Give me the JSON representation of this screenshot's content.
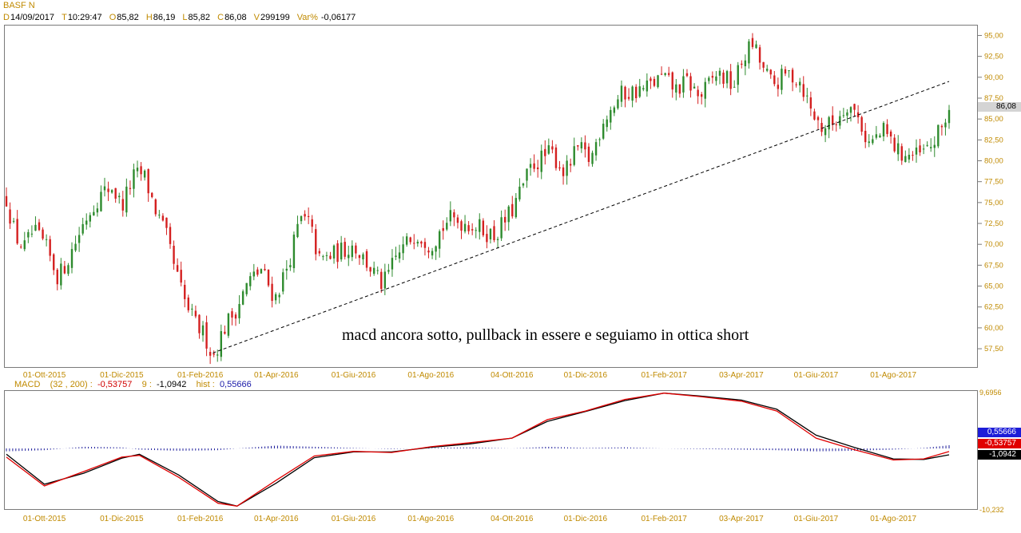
{
  "header": {
    "title": "BASF N",
    "quote": [
      {
        "k": "D",
        "v": "14/09/2017"
      },
      {
        "k": "T",
        "v": "10:29:47"
      },
      {
        "k": "O",
        "v": "85,82"
      },
      {
        "k": "H",
        "v": "86,19"
      },
      {
        "k": "L",
        "v": "85,82"
      },
      {
        "k": "C",
        "v": "86,08"
      },
      {
        "k": "V",
        "v": "299199"
      },
      {
        "k": "Var%",
        "v": "-0,06177"
      }
    ]
  },
  "annotation": "macd ancora sotto, pullback in essere e seguiamo in ottica short",
  "price_axis_labels": [
    "95,00",
    "92,50",
    "90,00",
    "87,50",
    "85,00",
    "82,50",
    "80,00",
    "77,50",
    "75,00",
    "72,50",
    "70,00",
    "67,50",
    "65,00",
    "62,50",
    "60,00",
    "57,50"
  ],
  "last_price_label": "86,08",
  "date_labels": [
    "01-Ott-2015",
    "01-Dic-2015",
    "01-Feb-2016",
    "01-Apr-2016",
    "01-Giu-2016",
    "01-Ago-2016",
    "04-Ott-2016",
    "01-Dic-2016",
    "01-Feb-2017",
    "03-Apr-2017",
    "01-Giu-2017",
    "01-Ago-2017"
  ],
  "macd_header": {
    "name": "MACD",
    "params": "(32 , 200)",
    "macd_value": "-0,53757",
    "signal_label": "9",
    "signal_value": "-1,0942",
    "hist_label": "hist",
    "hist_value": "0,55666"
  },
  "macd_axis": {
    "top": "9,6956",
    "bottom": "-10,232"
  },
  "macd_tags": {
    "hist": "0,55666",
    "macd": "-0,53757",
    "signal": "-1,0942"
  },
  "colors": {
    "up": "#2e8b2e",
    "down": "#d42020",
    "macd": "#e00000",
    "signal": "#000000",
    "hist": "#1a1a9a",
    "axis_text": "#c08a00"
  },
  "chart_data": [
    {
      "type": "candlestick",
      "title": "BASF N",
      "x_range": [
        "2015-09-01",
        "2017-09-14"
      ],
      "ylim": [
        55.5,
        96.0
      ],
      "price_path": [
        {
          "date": "2015-09-01",
          "close": 75.5
        },
        {
          "date": "2015-09-08",
          "close": 71.0
        },
        {
          "date": "2015-09-15",
          "close": 69.5
        },
        {
          "date": "2015-09-22",
          "close": 71.5
        },
        {
          "date": "2015-10-01",
          "close": 70.0
        },
        {
          "date": "2015-10-12",
          "close": 66.0
        },
        {
          "date": "2015-10-22",
          "close": 69.0
        },
        {
          "date": "2015-11-02",
          "close": 73.0
        },
        {
          "date": "2015-11-12",
          "close": 75.5
        },
        {
          "date": "2015-11-23",
          "close": 77.0
        },
        {
          "date": "2015-12-01",
          "close": 74.5
        },
        {
          "date": "2015-12-10",
          "close": 78.0
        },
        {
          "date": "2015-12-18",
          "close": 78.5
        },
        {
          "date": "2015-12-28",
          "close": 74.0
        },
        {
          "date": "2016-01-05",
          "close": 71.0
        },
        {
          "date": "2016-01-12",
          "close": 67.0
        },
        {
          "date": "2016-01-20",
          "close": 63.0
        },
        {
          "date": "2016-01-28",
          "close": 60.5
        },
        {
          "date": "2016-02-05",
          "close": 59.0
        },
        {
          "date": "2016-02-11",
          "close": 56.5
        },
        {
          "date": "2016-02-20",
          "close": 60.0
        },
        {
          "date": "2016-03-01",
          "close": 62.5
        },
        {
          "date": "2016-03-10",
          "close": 65.5
        },
        {
          "date": "2016-03-20",
          "close": 67.0
        },
        {
          "date": "2016-03-31",
          "close": 63.5
        },
        {
          "date": "2016-04-10",
          "close": 67.5
        },
        {
          "date": "2016-04-20",
          "close": 73.0
        },
        {
          "date": "2016-04-27",
          "close": 72.5
        },
        {
          "date": "2016-05-05",
          "close": 68.0
        },
        {
          "date": "2016-05-20",
          "close": 69.0
        },
        {
          "date": "2016-06-01",
          "close": 70.0
        },
        {
          "date": "2016-06-15",
          "close": 67.0
        },
        {
          "date": "2016-06-24",
          "close": 65.0
        },
        {
          "date": "2016-07-05",
          "close": 68.5
        },
        {
          "date": "2016-07-20",
          "close": 71.5
        },
        {
          "date": "2016-08-01",
          "close": 70.0
        },
        {
          "date": "2016-08-15",
          "close": 73.0
        },
        {
          "date": "2016-09-01",
          "close": 72.5
        },
        {
          "date": "2016-09-20",
          "close": 71.0
        },
        {
          "date": "2016-10-04",
          "close": 74.0
        },
        {
          "date": "2016-10-20",
          "close": 79.5
        },
        {
          "date": "2016-11-04",
          "close": 81.0
        },
        {
          "date": "2016-11-15",
          "close": 78.5
        },
        {
          "date": "2016-11-25",
          "close": 81.5
        },
        {
          "date": "2016-12-05",
          "close": 80.0
        },
        {
          "date": "2016-12-15",
          "close": 85.0
        },
        {
          "date": "2016-12-30",
          "close": 88.0
        },
        {
          "date": "2017-01-15",
          "close": 88.5
        },
        {
          "date": "2017-01-31",
          "close": 90.0
        },
        {
          "date": "2017-02-10",
          "close": 88.5
        },
        {
          "date": "2017-02-20",
          "close": 89.5
        },
        {
          "date": "2017-03-01",
          "close": 87.5
        },
        {
          "date": "2017-03-15",
          "close": 90.5
        },
        {
          "date": "2017-03-28",
          "close": 89.0
        },
        {
          "date": "2017-04-05",
          "close": 92.5
        },
        {
          "date": "2017-04-12",
          "close": 94.0
        },
        {
          "date": "2017-04-20",
          "close": 91.0
        },
        {
          "date": "2017-04-28",
          "close": 89.0
        },
        {
          "date": "2017-05-10",
          "close": 90.5
        },
        {
          "date": "2017-05-20",
          "close": 89.5
        },
        {
          "date": "2017-05-28",
          "close": 86.0
        },
        {
          "date": "2017-06-05",
          "close": 84.0
        },
        {
          "date": "2017-06-15",
          "close": 84.5
        },
        {
          "date": "2017-06-26",
          "close": 87.0
        },
        {
          "date": "2017-07-05",
          "close": 85.0
        },
        {
          "date": "2017-07-12",
          "close": 82.0
        },
        {
          "date": "2017-07-25",
          "close": 83.5
        },
        {
          "date": "2017-08-05",
          "close": 81.0
        },
        {
          "date": "2017-08-20",
          "close": 80.5
        },
        {
          "date": "2017-08-30",
          "close": 81.5
        },
        {
          "date": "2017-09-05",
          "close": 83.0
        },
        {
          "date": "2017-09-14",
          "close": 86.08
        }
      ],
      "trendline": {
        "from": {
          "date": "2016-02-11",
          "price": 57.0
        },
        "to": {
          "date": "2017-09-14",
          "price": 89.5
        }
      }
    },
    {
      "type": "line",
      "title": "MACD",
      "x_range": [
        "2015-09-01",
        "2017-09-14"
      ],
      "ylim": [
        -10.232,
        9.6956
      ],
      "series": [
        {
          "name": "MACD",
          "points": [
            {
              "date": "2015-09-01",
              "v": -1.5
            },
            {
              "date": "2015-10-01",
              "v": -6.5
            },
            {
              "date": "2015-11-01",
              "v": -4.0
            },
            {
              "date": "2015-12-01",
              "v": -1.5
            },
            {
              "date": "2015-12-15",
              "v": -1.2
            },
            {
              "date": "2016-01-15",
              "v": -5.0
            },
            {
              "date": "2016-02-15",
              "v": -9.5
            },
            {
              "date": "2016-03-01",
              "v": -10.0
            },
            {
              "date": "2016-04-01",
              "v": -5.5
            },
            {
              "date": "2016-05-01",
              "v": -1.3
            },
            {
              "date": "2016-06-01",
              "v": -0.5
            },
            {
              "date": "2016-07-01",
              "v": -0.7
            },
            {
              "date": "2016-08-01",
              "v": 0.3
            },
            {
              "date": "2016-09-01",
              "v": 1.0
            },
            {
              "date": "2016-10-04",
              "v": 1.8
            },
            {
              "date": "2016-11-01",
              "v": 5.0
            },
            {
              "date": "2016-12-01",
              "v": 6.5
            },
            {
              "date": "2017-01-01",
              "v": 8.5
            },
            {
              "date": "2017-02-01",
              "v": 9.6
            },
            {
              "date": "2017-03-01",
              "v": 9.0
            },
            {
              "date": "2017-04-03",
              "v": 8.2
            },
            {
              "date": "2017-05-01",
              "v": 6.5
            },
            {
              "date": "2017-06-01",
              "v": 1.8
            },
            {
              "date": "2017-07-01",
              "v": -0.2
            },
            {
              "date": "2017-08-01",
              "v": -2.0
            },
            {
              "date": "2017-08-25",
              "v": -1.8
            },
            {
              "date": "2017-09-14",
              "v": -0.53757
            }
          ]
        },
        {
          "name": "9",
          "points": [
            {
              "date": "2015-09-01",
              "v": -1.0
            },
            {
              "date": "2015-10-01",
              "v": -6.2
            },
            {
              "date": "2015-11-01",
              "v": -4.3
            },
            {
              "date": "2015-12-01",
              "v": -1.7
            },
            {
              "date": "2015-12-15",
              "v": -1.0
            },
            {
              "date": "2016-01-15",
              "v": -4.6
            },
            {
              "date": "2016-02-15",
              "v": -9.2
            },
            {
              "date": "2016-03-01",
              "v": -10.0
            },
            {
              "date": "2016-04-01",
              "v": -6.0
            },
            {
              "date": "2016-05-01",
              "v": -1.6
            },
            {
              "date": "2016-06-01",
              "v": -0.6
            },
            {
              "date": "2016-07-01",
              "v": -0.6
            },
            {
              "date": "2016-08-01",
              "v": 0.2
            },
            {
              "date": "2016-09-01",
              "v": 0.8
            },
            {
              "date": "2016-10-04",
              "v": 1.8
            },
            {
              "date": "2016-11-01",
              "v": 4.7
            },
            {
              "date": "2016-12-01",
              "v": 6.4
            },
            {
              "date": "2017-01-01",
              "v": 8.3
            },
            {
              "date": "2017-02-01",
              "v": 9.6
            },
            {
              "date": "2017-03-01",
              "v": 9.1
            },
            {
              "date": "2017-04-03",
              "v": 8.4
            },
            {
              "date": "2017-05-01",
              "v": 6.8
            },
            {
              "date": "2017-06-01",
              "v": 2.3
            },
            {
              "date": "2017-07-01",
              "v": 0.2
            },
            {
              "date": "2017-08-01",
              "v": -1.8
            },
            {
              "date": "2017-08-25",
              "v": -1.9
            },
            {
              "date": "2017-09-14",
              "v": -1.0942
            }
          ]
        }
      ],
      "histogram": {
        "name": "hist",
        "last": 0.55666,
        "ylim": [
          -10.232,
          9.6956
        ]
      }
    }
  ]
}
